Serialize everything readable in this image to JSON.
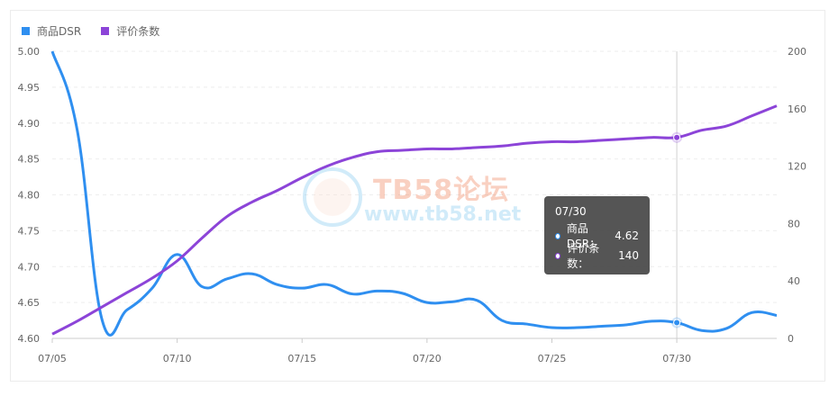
{
  "legend": [
    {
      "label": "商品DSR",
      "color": "#2f8ff0"
    },
    {
      "label": "评价条数",
      "color": "#8c44d8"
    }
  ],
  "watermark": {
    "title": "TB58论坛",
    "url": "www.tb58.net"
  },
  "tooltip": {
    "date": "07/30",
    "rows": [
      {
        "label": "商品DSR：",
        "value": "4.62",
        "color": "#2f8ff0"
      },
      {
        "label": "评价条数：",
        "value": "140",
        "color": "#8c44d8"
      }
    ]
  },
  "chart_data": {
    "type": "line",
    "x": [
      "07/05",
      "07/06",
      "07/07",
      "07/08",
      "07/09",
      "07/10",
      "07/11",
      "07/12",
      "07/13",
      "07/14",
      "07/15",
      "07/16",
      "07/17",
      "07/18",
      "07/19",
      "07/20",
      "07/21",
      "07/22",
      "07/23",
      "07/24",
      "07/25",
      "07/26",
      "07/27",
      "07/28",
      "07/29",
      "07/30",
      "07/31",
      "08/01",
      "08/02",
      "08/03"
    ],
    "x_tick_labels": [
      "07/05",
      "07/10",
      "07/15",
      "07/20",
      "07/25",
      "07/30"
    ],
    "series": [
      {
        "name": "商品DSR",
        "axis": "left",
        "color": "#2f8ff0",
        "values": [
          5.0,
          4.89,
          4.625,
          4.64,
          4.67,
          4.717,
          4.672,
          4.683,
          4.69,
          4.675,
          4.67,
          4.675,
          4.662,
          4.666,
          4.663,
          4.65,
          4.651,
          4.653,
          4.625,
          4.62,
          4.615,
          4.615,
          4.617,
          4.619,
          4.624,
          4.622,
          4.611,
          4.614,
          4.636,
          4.632
        ]
      },
      {
        "name": "评价条数",
        "axis": "right",
        "color": "#8c44d8",
        "values": [
          3,
          12,
          22,
          32,
          42,
          54,
          70,
          85,
          95,
          103,
          112,
          120,
          126,
          130,
          131,
          132,
          132,
          133,
          134,
          136,
          137,
          137,
          138,
          139,
          140,
          140,
          145,
          148,
          155,
          162
        ]
      }
    ],
    "ylim_left": [
      4.6,
      5.0
    ],
    "yticks_left": [
      "5.00",
      "4.95",
      "4.90",
      "4.85",
      "4.80",
      "4.75",
      "4.70",
      "4.65",
      "4.60"
    ],
    "ylim_right": [
      0,
      200
    ],
    "yticks_right": [
      "200",
      "160",
      "120",
      "80",
      "40",
      "0"
    ],
    "highlight_x": "07/30",
    "grid": true,
    "legend_position": "top-left"
  }
}
